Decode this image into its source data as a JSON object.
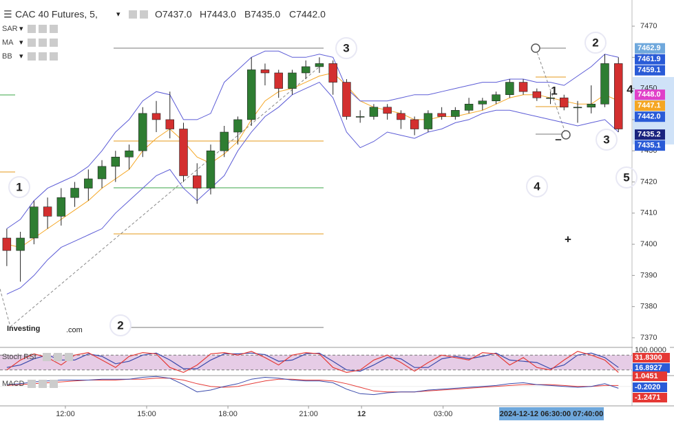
{
  "chart_data": {
    "type": "candlestick",
    "title": "CAC 40 Futures, 5,",
    "header_values": [
      "O7437.0",
      "H7443.0",
      "B7435.0",
      "C7442.0"
    ],
    "indicators": [
      "SAR",
      "MA",
      "BB"
    ],
    "xlim": [
      -0.5,
      46
    ],
    "xticks": [
      {
        "value": 4.31,
        "label": "12:00"
      },
      {
        "value": 10.29,
        "label": "15:00"
      },
      {
        "value": 16.27,
        "label": "18:00"
      },
      {
        "value": 22.2,
        "label": "21:00"
      },
      {
        "value": 26.1,
        "label": "12"
      },
      {
        "value": 32.1,
        "label": "03:00"
      }
    ],
    "ylim": [
      7366.9,
      7478.4
    ],
    "yticks": [
      7370,
      7380,
      7390,
      7400,
      7410,
      7420,
      7430,
      7440,
      7450,
      7460,
      7470
    ],
    "up_color": "#2e7d32",
    "down_color": "#d32f2f",
    "candles": [
      [
        7402,
        7405,
        7393,
        7398
      ],
      [
        7398,
        7404,
        7388,
        7402
      ],
      [
        7402,
        7414,
        7400,
        7412
      ],
      [
        7412,
        7415,
        7405,
        7409
      ],
      [
        7409,
        7418,
        7406,
        7415
      ],
      [
        7415,
        7420,
        7412,
        7418
      ],
      [
        7418,
        7424,
        7414,
        7421
      ],
      [
        7421,
        7427,
        7418,
        7425
      ],
      [
        7425,
        7430,
        7420,
        7428
      ],
      [
        7428,
        7432,
        7424,
        7430
      ],
      [
        7430,
        7444,
        7428,
        7442
      ],
      [
        7442,
        7446,
        7436,
        7440
      ],
      [
        7440,
        7449,
        7434,
        7437
      ],
      [
        7437,
        7439,
        7420,
        7422
      ],
      [
        7422,
        7426,
        7413,
        7418
      ],
      [
        7418,
        7432,
        7416,
        7430
      ],
      [
        7430,
        7438,
        7428,
        7436
      ],
      [
        7436,
        7441,
        7432,
        7440
      ],
      [
        7440,
        7460,
        7438,
        7456
      ],
      [
        7456,
        7458,
        7451,
        7455
      ],
      [
        7455,
        7456,
        7447,
        7450
      ],
      [
        7450,
        7456,
        7448,
        7455
      ],
      [
        7455,
        7459,
        7453,
        7457
      ],
      [
        7457,
        7460,
        7455,
        7458
      ],
      [
        7458,
        7459,
        7448,
        7452
      ],
      [
        7452,
        7453,
        7440,
        7441
      ],
      [
        7441,
        7443,
        7439,
        7441
      ],
      [
        7441,
        7445,
        7440,
        7444
      ],
      [
        7444,
        7445,
        7440,
        7442
      ],
      [
        7442,
        7443,
        7437,
        7440
      ],
      [
        7440,
        7441,
        7435,
        7437
      ],
      [
        7437,
        7443,
        7436,
        7442
      ],
      [
        7442,
        7444,
        7440,
        7441
      ],
      [
        7441,
        7444,
        7440,
        7443
      ],
      [
        7443,
        7447,
        7442,
        7445
      ],
      [
        7445,
        7447,
        7443,
        7446
      ],
      [
        7446,
        7449,
        7445,
        7448
      ],
      [
        7448,
        7453,
        7447,
        7452
      ],
      [
        7452,
        7453,
        7448,
        7449
      ],
      [
        7449,
        7450,
        7446,
        7447
      ],
      [
        7447,
        7449,
        7445,
        7447
      ],
      [
        7447,
        7448,
        7443,
        7444
      ],
      [
        7444,
        7446,
        7439,
        7444
      ],
      [
        7444,
        7451,
        7442,
        7445
      ],
      [
        7445,
        7461,
        7444,
        7458
      ],
      [
        7458,
        7460,
        7436,
        7437
      ]
    ],
    "overlays": [
      {
        "name": "MA",
        "color": "#f5a623",
        "values": [
          7400,
          7399,
          7402,
          7405,
          7408,
          7411,
          7414,
          7418,
          7421,
          7424,
          7430,
          7434,
          7437,
          7433,
          7428,
          7426,
          7429,
          7433,
          7440,
          7446,
          7449,
          7450,
          7452,
          7454,
          7455,
          7451,
          7446,
          7444,
          7443,
          7442,
          7440,
          7440,
          7441,
          7441,
          7442,
          7443,
          7445,
          7447,
          7448,
          7448,
          7447,
          7446,
          7445,
          7445,
          7448,
          7446
        ]
      },
      {
        "name": "BB",
        "color": "#5b5bd6",
        "upper": [
          7405,
          7408,
          7414,
          7418,
          7420,
          7422,
          7425,
          7430,
          7436,
          7440,
          7446,
          7449,
          7448,
          7440,
          7440,
          7442,
          7452,
          7456,
          7460,
          7462,
          7462,
          7460,
          7460,
          7461,
          7460,
          7450,
          7446,
          7446,
          7446,
          7447,
          7448,
          7448,
          7449,
          7450,
          7451,
          7452,
          7452,
          7453,
          7453,
          7452,
          7452,
          7451,
          7454,
          7457,
          7461,
          7460
        ],
        "lower": [
          7384,
          7386,
          7390,
          7395,
          7399,
          7401,
          7403,
          7405,
          7410,
          7414,
          7418,
          7422,
          7424,
          7418,
          7414,
          7418,
          7422,
          7430,
          7436,
          7441,
          7444,
          7448,
          7450,
          7452,
          7447,
          7436,
          7431,
          7433,
          7436,
          7435,
          7434,
          7436,
          7437,
          7439,
          7440,
          7442,
          7443,
          7443,
          7442,
          7441,
          7440,
          7439,
          7438,
          7439,
          7440,
          7436
        ]
      }
    ],
    "price_labels": [
      {
        "value": 7462.9,
        "label": "7462.9",
        "color": "#6fa8dc"
      },
      {
        "value": 7461.9,
        "label": "7461.9",
        "color": "#2a5bd7"
      },
      {
        "value": 7459.1,
        "label": "7459.1",
        "color": "#2a5bd7"
      },
      {
        "value": 7448.0,
        "label": "7448.0",
        "color": "#e040c8"
      },
      {
        "value": 7447.1,
        "label": "7447.1",
        "color": "#f5a623"
      },
      {
        "value": 7442.0,
        "label": "7442.0",
        "color": "#2a5bd7"
      },
      {
        "value": 7435.2,
        "label": "7435.2",
        "color": "#1a237e"
      },
      {
        "value": 7435.1,
        "label": "7435.1",
        "color": "#2a5bd7"
      }
    ],
    "annotations_red": [
      "1",
      "2",
      "3",
      "4",
      "+",
      "–"
    ],
    "annotations_blue": [
      "1",
      "2",
      "3",
      "4",
      "5"
    ],
    "crosshair_label": "2024-12-12 06:30:00 07:40:00",
    "logo": [
      "Investing",
      ".com"
    ],
    "stoch": {
      "name": "Stoch RSI",
      "ylim": [
        0,
        100
      ],
      "levels": [
        20,
        80
      ],
      "k": {
        "color": "#e53935",
        "values": [
          20,
          60,
          85,
          70,
          40,
          80,
          90,
          60,
          30,
          75,
          90,
          85,
          30,
          10,
          40,
          85,
          90,
          80,
          95,
          70,
          40,
          80,
          90,
          85,
          30,
          10,
          20,
          60,
          80,
          50,
          15,
          50,
          80,
          70,
          60,
          90,
          85,
          40,
          70,
          30,
          20,
          60,
          95,
          80,
          60,
          10
        ]
      },
      "d": {
        "color": "#3949ab",
        "values": [
          30,
          40,
          65,
          80,
          60,
          60,
          85,
          75,
          45,
          55,
          80,
          88,
          60,
          25,
          25,
          60,
          85,
          85,
          88,
          82,
          55,
          60,
          85,
          88,
          55,
          20,
          15,
          40,
          70,
          65,
          30,
          30,
          65,
          75,
          65,
          75,
          88,
          60,
          55,
          50,
          25,
          40,
          80,
          88,
          70,
          30
        ]
      },
      "labels": [
        {
          "label": "100.0000",
          "color": "#ffffff"
        },
        {
          "label": "31.8300",
          "color": "#e53935"
        },
        {
          "label": "16.8927",
          "color": "#2a5bd7"
        }
      ]
    },
    "macd": {
      "name": "MACD",
      "ylim": [
        -2.14,
        1.19
      ],
      "line": {
        "color": "#3949ab",
        "values": [
          0.2,
          0.3,
          0.5,
          0.6,
          0.7,
          0.7,
          0.7,
          0.8,
          0.8,
          0.8,
          1.0,
          1.1,
          0.9,
          0.2,
          -0.6,
          -0.4,
          0.0,
          0.3,
          0.8,
          1.0,
          0.9,
          0.7,
          0.6,
          0.6,
          0.4,
          -0.3,
          -0.8,
          -0.9,
          -0.7,
          -0.6,
          -0.6,
          -0.4,
          -0.3,
          -0.2,
          -0.1,
          0.0,
          0.1,
          0.3,
          0.4,
          0.2,
          0.1,
          0.0,
          -0.1,
          0.0,
          0.3,
          -0.2
        ]
      },
      "signal": {
        "color": "#e53935",
        "values": [
          0.1,
          0.2,
          0.3,
          0.4,
          0.5,
          0.6,
          0.7,
          0.7,
          0.7,
          0.8,
          0.8,
          0.9,
          0.9,
          0.7,
          0.3,
          0.0,
          -0.1,
          0.0,
          0.3,
          0.6,
          0.8,
          0.8,
          0.7,
          0.7,
          0.6,
          0.3,
          -0.1,
          -0.5,
          -0.6,
          -0.6,
          -0.6,
          -0.5,
          -0.4,
          -0.3,
          -0.2,
          -0.1,
          0.0,
          0.1,
          0.2,
          0.2,
          0.2,
          0.1,
          0.0,
          0.0,
          0.1,
          0.1
        ]
      },
      "labels": [
        {
          "label": "1.0451",
          "color": "#e53935"
        },
        {
          "label": "-0.2020",
          "color": "#2a5bd7"
        },
        {
          "label": "-1.2471",
          "color": "#e53935"
        }
      ]
    }
  }
}
